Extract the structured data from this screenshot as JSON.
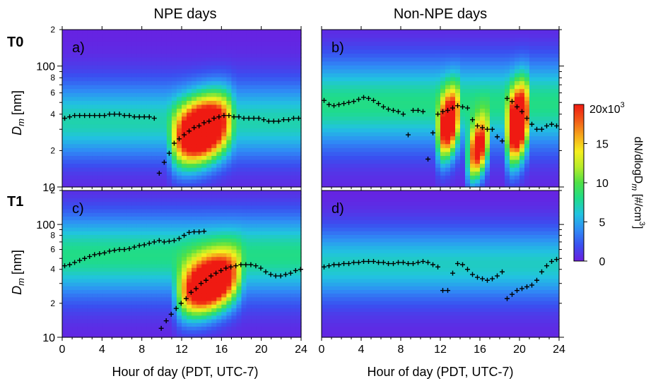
{
  "figure": {
    "column_titles": [
      "NPE days",
      "Non-NPE days"
    ],
    "row_labels": [
      "T0",
      "T1"
    ],
    "xlabel": "Hour of day (PDT, UTC-7)",
    "ylabel_main": "D",
    "ylabel_sub": "m",
    "ylabel_unit": " [nm]",
    "colorbar_label_main": "dN/dlogD",
    "colorbar_label_sub": "m",
    "colorbar_label_unit": " [#/cm",
    "colorbar_label_sup": "3",
    "colorbar_label_close": "]",
    "colorbar_top_label": "20x10",
    "colorbar_top_sup": "3",
    "colorbar_ticks": [
      "0",
      "5",
      "10",
      "15"
    ],
    "colorbar_tick_values": [
      0,
      5000,
      10000,
      15000
    ],
    "colors": {
      "low": "#7a1fe6",
      "scale": [
        "#6b1ee0",
        "#3a4ff0",
        "#2f8cf5",
        "#21c3e0",
        "#1fdc8a",
        "#4fe046",
        "#b6ec2a",
        "#f5ef1e",
        "#f6a81b",
        "#f25a18",
        "#ef1a12"
      ],
      "marker": "#000000"
    }
  },
  "chart_data": [
    {
      "type": "heatmap",
      "panel": "a)",
      "row": "T0",
      "column": "NPE days",
      "xlim": [
        0,
        24
      ],
      "ylim": [
        10,
        200
      ],
      "yscale": "log",
      "xticks": [
        0,
        4,
        8,
        12,
        16,
        20,
        24
      ],
      "yticks_labeled": [
        10,
        100
      ],
      "ytick_labels": {
        "2": [
          20,
          200
        ],
        "4": [
          40
        ],
        "6": [
          60
        ],
        "8": [
          80
        ]
      },
      "background": {
        "base_nm": 35,
        "width": 0.3,
        "peak": 6000
      },
      "events": [
        {
          "x0": 10.5,
          "x1": 18.5,
          "nm": 40,
          "width": 0.25,
          "peak": 24000
        }
      ],
      "mode_diameter_nm": {
        "x": [
          0,
          0.5,
          1,
          1.5,
          2,
          2.5,
          3,
          3.5,
          4,
          4.5,
          5,
          5.5,
          6,
          6.5,
          7,
          7.5,
          8,
          8.5,
          9,
          9.5,
          10,
          10.5,
          11,
          11.5,
          12,
          12.5,
          13,
          13.5,
          14,
          14.5,
          15,
          15.5,
          16,
          16.5,
          17,
          17.5,
          18,
          18.5,
          19,
          19.5,
          20,
          20.5,
          21,
          21.5,
          22,
          22.5,
          23,
          23.5
        ],
        "y": [
          37,
          38,
          39,
          39,
          39,
          39,
          39,
          39,
          39,
          40,
          40,
          40,
          39,
          39,
          38,
          38,
          38,
          38,
          37,
          13,
          16,
          19,
          23,
          25,
          27,
          29,
          31,
          32,
          34,
          35,
          37,
          38,
          39,
          39,
          38,
          38,
          37,
          37,
          37,
          37,
          36,
          35,
          35,
          35,
          36,
          36,
          37,
          37
        ]
      }
    },
    {
      "type": "heatmap",
      "panel": "b)",
      "row": "T0",
      "column": "Non-NPE days",
      "xlim": [
        0,
        24
      ],
      "ylim": [
        10,
        200
      ],
      "yscale": "log",
      "xticks": [
        0,
        4,
        8,
        12,
        16,
        20,
        24
      ],
      "background": {
        "base_nm": 50,
        "width": 0.35,
        "peak": 7000
      },
      "events": [
        {
          "x0": 11.5,
          "x1": 14.5,
          "nm": 45,
          "width": 0.25,
          "peak": 20000
        },
        {
          "x0": 14.5,
          "x1": 17.5,
          "nm": 28,
          "width": 0.22,
          "peak": 20000
        },
        {
          "x0": 18.5,
          "x1": 21.5,
          "nm": 45,
          "width": 0.28,
          "peak": 24000
        }
      ],
      "mode_diameter_nm": {
        "x": [
          0,
          0.5,
          1,
          1.5,
          2,
          2.5,
          3,
          3.5,
          4,
          4.5,
          5,
          5.5,
          6,
          6.5,
          7,
          7.5,
          8,
          8.5,
          9,
          9.5,
          10,
          10.5,
          11,
          11.5,
          12,
          12.5,
          13,
          13.5,
          14,
          14.5,
          15,
          15.5,
          16,
          16.5,
          17,
          17.5,
          18,
          18.5,
          19,
          19.5,
          20,
          20.5,
          21,
          21.5,
          22,
          22.5,
          23,
          23.5
        ],
        "y": [
          52,
          48,
          47,
          48,
          49,
          50,
          51,
          53,
          55,
          54,
          52,
          49,
          46,
          44,
          43,
          42,
          40,
          27,
          43,
          43,
          42,
          17,
          28,
          40,
          42,
          43,
          45,
          47,
          46,
          45,
          36,
          32,
          31,
          30,
          30,
          26,
          24,
          54,
          51,
          46,
          42,
          37,
          33,
          30,
          30,
          32,
          33,
          32
        ]
      }
    },
    {
      "type": "heatmap",
      "panel": "c)",
      "row": "T1",
      "column": "NPE days",
      "xlim": [
        0,
        24
      ],
      "ylim": [
        10,
        200
      ],
      "yscale": "log",
      "xticks": [
        0,
        4,
        8,
        12,
        16,
        20,
        24
      ],
      "background": {
        "base_nm": 55,
        "width": 0.35,
        "peak": 7000
      },
      "events": [
        {
          "x0": 11.0,
          "x1": 19.5,
          "nm": 40,
          "width": 0.24,
          "peak": 24000
        }
      ],
      "mode_diameter_nm": {
        "x": [
          0,
          0.5,
          1,
          1.5,
          2,
          2.5,
          3,
          3.5,
          4,
          4.5,
          5,
          5.5,
          6,
          6.5,
          7,
          7.5,
          8,
          8.5,
          9,
          9.5,
          10,
          10.5,
          11,
          11.5,
          12,
          12.5,
          13,
          13.5,
          14,
          9.7,
          10.2,
          10.7,
          11.2,
          11.7,
          12.2,
          12.7,
          13.2,
          13.7,
          14.2,
          14.7,
          15.2,
          15.7,
          16.2,
          16.7,
          17.2,
          17.7,
          18.2,
          18.7,
          19.2,
          19.7,
          20.2,
          20.7,
          21.2,
          21.7,
          22.2,
          22.7,
          23.2,
          23.7
        ],
        "y": [
          43,
          44,
          46,
          48,
          50,
          52,
          54,
          55,
          56,
          58,
          59,
          60,
          60,
          61,
          63,
          65,
          66,
          68,
          70,
          72,
          70,
          71,
          72,
          75,
          80,
          85,
          86,
          86,
          87,
          12,
          14,
          16,
          18,
          20,
          22,
          25,
          27,
          30,
          32,
          35,
          37,
          39,
          41,
          42,
          43,
          44,
          44,
          44,
          43,
          41,
          38,
          36,
          35,
          35,
          36,
          37,
          39,
          40
        ]
      }
    },
    {
      "type": "heatmap",
      "panel": "d)",
      "row": "T1",
      "column": "Non-NPE days",
      "xlim": [
        0,
        24
      ],
      "ylim": [
        10,
        200
      ],
      "yscale": "log",
      "xticks": [
        0,
        4,
        8,
        12,
        16,
        20,
        24
      ],
      "background": {
        "base_nm": 45,
        "width": 0.3,
        "peak": 5500
      },
      "events": [],
      "mode_diameter_nm": {
        "x": [
          0,
          0.5,
          1,
          1.5,
          2,
          2.5,
          3,
          3.5,
          4,
          4.5,
          5,
          5.5,
          6,
          6.5,
          7,
          7.5,
          8,
          8.5,
          9,
          9.5,
          10,
          10.5,
          11,
          11.5,
          12,
          12.5,
          13,
          13.5,
          14,
          14.5,
          15,
          15.5,
          16,
          16.5,
          17,
          17.5,
          18,
          18.5,
          19,
          19.5,
          20,
          20.5,
          21,
          21.5,
          22,
          22.5,
          23,
          23.5
        ],
        "y": [
          42,
          43,
          44,
          44,
          45,
          45,
          46,
          46,
          47,
          47,
          47,
          46,
          46,
          45,
          45,
          46,
          46,
          45,
          45,
          46,
          47,
          46,
          44,
          42,
          26,
          26,
          37,
          45,
          44,
          40,
          36,
          34,
          33,
          32,
          33,
          35,
          38,
          22,
          24,
          26,
          27,
          28,
          29,
          32,
          38,
          43,
          47,
          49
        ]
      }
    }
  ]
}
